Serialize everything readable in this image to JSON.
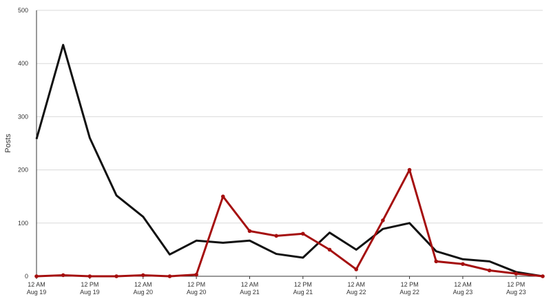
{
  "chart_data": {
    "type": "line",
    "y_label": "Posts",
    "categories": [
      [
        "12 AM",
        "Aug 19"
      ],
      null,
      [
        "12 PM",
        "Aug 19"
      ],
      null,
      [
        "12 AM",
        "Aug 20"
      ],
      null,
      [
        "12 PM",
        "Aug 20"
      ],
      null,
      [
        "12 AM",
        "Aug 21"
      ],
      null,
      [
        "12 PM",
        "Aug 21"
      ],
      null,
      [
        "12 AM",
        "Aug 22"
      ],
      null,
      [
        "12 PM",
        "Aug 22"
      ],
      null,
      [
        "12 AM",
        "Aug 23"
      ],
      null,
      [
        "12 PM",
        "Aug 23"
      ],
      null
    ],
    "series": [
      {
        "color": "#111111",
        "markers": false,
        "values": [
          258,
          435,
          260,
          152,
          112,
          41,
          67,
          63,
          67,
          42,
          35,
          82,
          50,
          89,
          100,
          47,
          32,
          28,
          8,
          0
        ]
      },
      {
        "color": "#a50f0f",
        "markers": true,
        "values": [
          0,
          2,
          0,
          0,
          2,
          0,
          3,
          150,
          85,
          76,
          80,
          50,
          13,
          105,
          200,
          28,
          23,
          11,
          5,
          0
        ]
      }
    ],
    "ylim": [
      0,
      500
    ],
    "yticks": [
      0,
      100,
      200,
      300,
      400,
      500
    ],
    "grid": true
  }
}
